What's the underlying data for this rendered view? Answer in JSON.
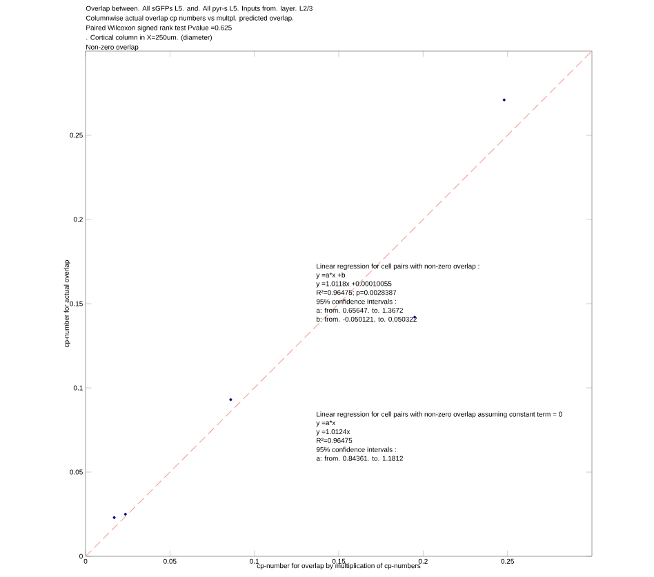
{
  "chart_data": {
    "type": "scatter",
    "title": "Overlap between. All sGFPs L5. and. All pyr-s L5. Inputs from. layer. L2/3",
    "annotations": [
      "Columnwise actual overlap cp numbers vs multpl. predicted overlap.",
      "Paired Wilcoxon signed rank test Pvalue =0.625",
      ". Cortical column in X=250um. (diameter)",
      "Non-zero overlap",
      "Linear regression for cell pairs with non-zero overlap :",
      "y =a*x +b",
      "y =1.0118x +0.00010055",
      "R²=0.96475; p=0.0028387",
      "95% confidence intervals :",
      "a: from. 0.65647. to. 1.3672",
      "b: from. -0.050121. to. 0.050322",
      "Linear regression for cell pairs with non-zero overlap assuming constant term = 0",
      "y =a*x",
      "y =1.0124x",
      "R²=0.96475",
      "95% confidence intervals :",
      "a: from. 0.84361. to. 1.1812"
    ],
    "xlabel": "cp-number for overlap by multiplication of cp-numbers",
    "ylabel": "cp-number for actual overlap",
    "xlim": [
      0,
      0.3
    ],
    "ylim": [
      0,
      0.3
    ],
    "xticks": [
      0,
      0.05,
      0.1,
      0.15,
      0.2,
      0.25
    ],
    "yticks": [
      0,
      0.05,
      0.1,
      0.15,
      0.2,
      0.25
    ],
    "series": [
      {
        "type": "line",
        "color": "#f4a6a0",
        "line_style": "dashed",
        "marker": "none",
        "x": [
          0,
          0.3
        ],
        "values": [
          0,
          0.3
        ]
      },
      {
        "color": "#00008b",
        "marker": "circle",
        "x": [
          0.017,
          0.0236,
          0.086,
          0.195,
          0.248
        ],
        "values": [
          0.023,
          0.025,
          0.093,
          0.142,
          0.271
        ]
      }
    ]
  }
}
